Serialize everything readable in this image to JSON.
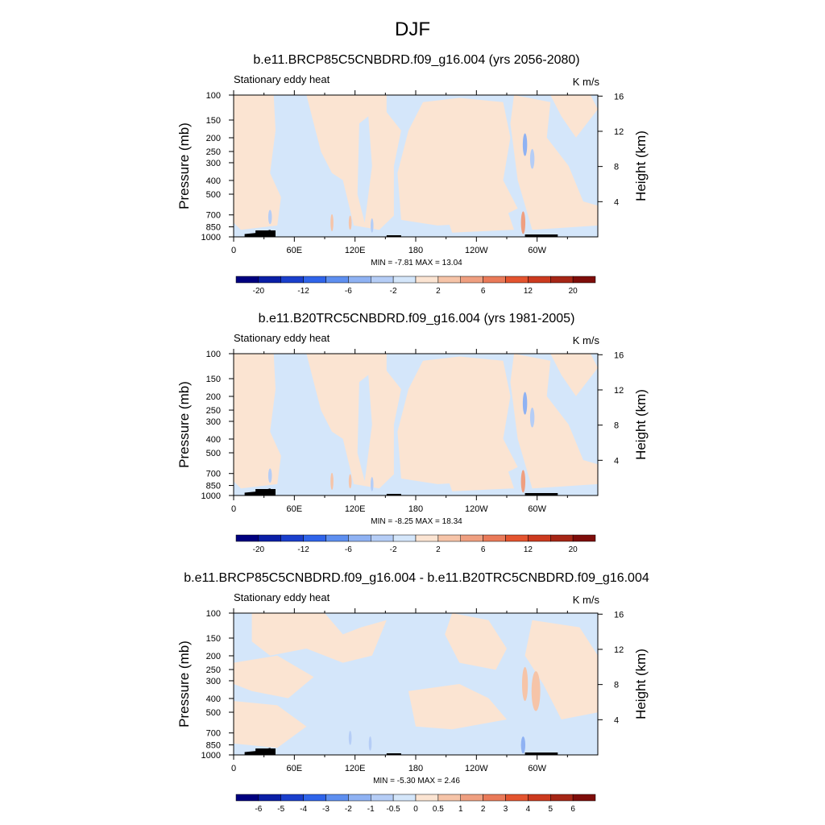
{
  "figure_title": "DJF",
  "colors": {
    "colorbar_levels_full": [
      "#00007f",
      "#0a1fa6",
      "#1a3fcc",
      "#2f64ea",
      "#5e8ff0",
      "#8fb2f3",
      "#b5cdf6",
      "#d4e6fa",
      "#fbe4d2",
      "#f6c4a8",
      "#ef9f80",
      "#ea7a59",
      "#e4542f",
      "#cc3a1f",
      "#a62616",
      "#7e0d0a"
    ],
    "colorbar_levels_diff": [
      "#00007f",
      "#0a1fa6",
      "#1a3fcc",
      "#2f64ea",
      "#5e8ff0",
      "#8fb2f3",
      "#b5cdf6",
      "#d4e6fa",
      "#fbe4d2",
      "#f6c4a8",
      "#ef9f80",
      "#ea7a59",
      "#e4542f",
      "#cc3a1f",
      "#a62616",
      "#7e0d0a"
    ]
  },
  "chart_data": [
    {
      "type": "heatmap",
      "title": "b.e11.BRCP85C5CNBDRD.f09_g16.004 (yrs 2056-2080)",
      "left_label": "Stationary eddy heat",
      "right_label": "K m/s",
      "xlabel": "",
      "ylabel": "Pressure (mb)",
      "y2label": "Height (km)",
      "xticks": [
        "0",
        "60E",
        "120E",
        "180",
        "120W",
        "60W"
      ],
      "xtick_lon": [
        0,
        60,
        120,
        180,
        240,
        300
      ],
      "xlim": [
        0,
        360
      ],
      "yticks": [
        "100",
        "150",
        "200",
        "250",
        "300",
        "400",
        "500",
        "700",
        "850",
        "1000"
      ],
      "ytick_p": [
        100,
        150,
        200,
        250,
        300,
        400,
        500,
        700,
        850,
        1000
      ],
      "ylim": [
        1000,
        100
      ],
      "y2ticks": [
        "4",
        "8",
        "12",
        "16"
      ],
      "y2tick_km": [
        4,
        8,
        12,
        16
      ],
      "min_max": "MIN =  -7.81  MAX =  13.04",
      "colorbar_labels": [
        "-20",
        "-12",
        "-6",
        "-2",
        "2",
        "6",
        "12",
        "20"
      ]
    },
    {
      "type": "heatmap",
      "title": "b.e11.B20TRC5CNBDRD.f09_g16.004 (yrs 1981-2005)",
      "left_label": "Stationary eddy heat",
      "right_label": "K m/s",
      "xlabel": "",
      "ylabel": "Pressure (mb)",
      "y2label": "Height (km)",
      "xticks": [
        "0",
        "60E",
        "120E",
        "180",
        "120W",
        "60W"
      ],
      "xtick_lon": [
        0,
        60,
        120,
        180,
        240,
        300
      ],
      "xlim": [
        0,
        360
      ],
      "yticks": [
        "100",
        "150",
        "200",
        "250",
        "300",
        "400",
        "500",
        "700",
        "850",
        "1000"
      ],
      "ytick_p": [
        100,
        150,
        200,
        250,
        300,
        400,
        500,
        700,
        850,
        1000
      ],
      "ylim": [
        1000,
        100
      ],
      "y2ticks": [
        "4",
        "8",
        "12",
        "16"
      ],
      "y2tick_km": [
        4,
        8,
        12,
        16
      ],
      "min_max": "MIN =  -8.25  MAX =  18.34",
      "colorbar_labels": [
        "-20",
        "-12",
        "-6",
        "-2",
        "2",
        "6",
        "12",
        "20"
      ]
    },
    {
      "type": "heatmap",
      "title": "b.e11.BRCP85C5CNBDRD.f09_g16.004 - b.e11.B20TRC5CNBDRD.f09_g16.004",
      "left_label": "Stationary eddy heat",
      "right_label": "K m/s",
      "xlabel": "",
      "ylabel": "Pressure (mb)",
      "y2label": "Height (km)",
      "xticks": [
        "0",
        "60E",
        "120E",
        "180",
        "120W",
        "60W"
      ],
      "xtick_lon": [
        0,
        60,
        120,
        180,
        240,
        300
      ],
      "xlim": [
        0,
        360
      ],
      "yticks": [
        "100",
        "150",
        "200",
        "250",
        "300",
        "400",
        "500",
        "700",
        "850",
        "1000"
      ],
      "ytick_p": [
        100,
        150,
        200,
        250,
        300,
        400,
        500,
        700,
        850,
        1000
      ],
      "ylim": [
        1000,
        100
      ],
      "y2ticks": [
        "4",
        "8",
        "12",
        "16"
      ],
      "y2tick_km": [
        4,
        8,
        12,
        16
      ],
      "min_max": "MIN =  -5.30  MAX =   2.46",
      "colorbar_labels": [
        "-6",
        "-5",
        "-4",
        "-3",
        "-2",
        "-1",
        "-0.5",
        "0",
        "0.5",
        "1",
        "2",
        "3",
        "4",
        "5",
        "6"
      ]
    }
  ]
}
